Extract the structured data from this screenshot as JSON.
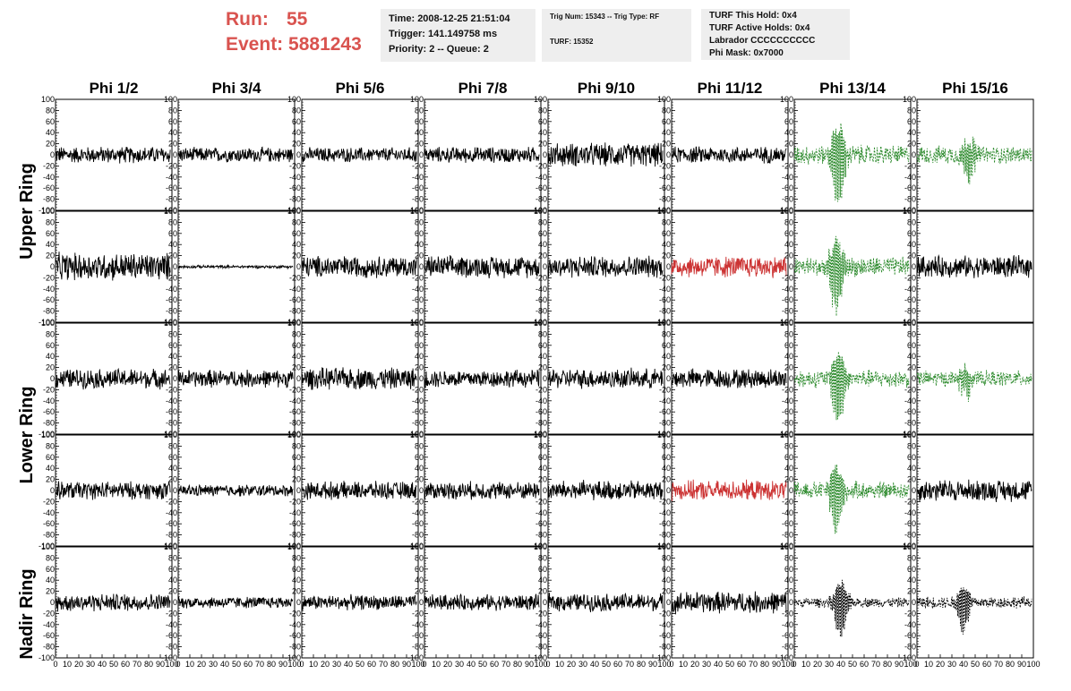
{
  "header": {
    "run_label": "Run:",
    "run_value": "55",
    "event_label": "Event:",
    "event_value": "5881243",
    "accent_color": "#d9534f"
  },
  "info": {
    "time": "Time: 2008-12-25 21:51:04",
    "trigger": "Trigger: 141.149758 ms",
    "priority": "Priority: 2 -- Queue: 2",
    "trig_num": "Trig Num: 15343 -- Trig Type: RF",
    "turf": "TURF: 15352",
    "turf_hold": "TURF This Hold: 0x4",
    "turf_active": "TURF Active Holds: 0x4",
    "labrador": "Labrador CCCCCCCCCC",
    "phi_mask": "Phi Mask: 0x7000"
  },
  "chart_data": {
    "type": "line",
    "columns": [
      "Phi 1/2",
      "Phi 3/4",
      "Phi 5/6",
      "Phi 7/8",
      "Phi 9/10",
      "Phi 11/12",
      "Phi 13/14",
      "Phi 15/16"
    ],
    "row_labels": [
      "Upper Ring",
      "Lower Ring",
      "Nadir Ring"
    ],
    "ylim": [
      -100,
      100
    ],
    "xlim": [
      0,
      100
    ],
    "y_ticks": [
      "100",
      "80",
      "60",
      "40",
      "20",
      "0",
      "-20",
      "-40",
      "-60",
      "-80",
      "-100"
    ],
    "x_ticks": [
      "0",
      "10",
      "20",
      "30",
      "40",
      "50",
      "60",
      "70",
      "80",
      "90",
      "100"
    ],
    "x_tick_text": "1020304050607080901 0",
    "colors": {
      "normal": "#000000",
      "triggered": "#cc3333",
      "masked": "#2e8b2e"
    },
    "panels": [
      [
        {
          "amp": 17,
          "color": "normal"
        },
        {
          "amp": 15,
          "color": "normal"
        },
        {
          "amp": 15,
          "color": "normal"
        },
        {
          "amp": 16,
          "color": "normal"
        },
        {
          "amp": 24,
          "color": "normal"
        },
        {
          "amp": 17,
          "color": "normal"
        },
        {
          "amp": 20,
          "color": "masked",
          "dashed": true,
          "pulse": {
            "center": 38,
            "amp": 90,
            "width": 6
          }
        },
        {
          "amp": 18,
          "color": "masked",
          "dashed": true,
          "pulse": {
            "center": 45,
            "amp": 45,
            "width": 6
          }
        }
      ],
      [
        {
          "amp": 28,
          "color": "normal"
        },
        {
          "amp": 3,
          "color": "normal"
        },
        {
          "amp": 22,
          "color": "normal"
        },
        {
          "amp": 22,
          "color": "normal"
        },
        {
          "amp": 22,
          "color": "normal"
        },
        {
          "amp": 22,
          "color": "triggered"
        },
        {
          "amp": 20,
          "color": "masked",
          "dashed": true,
          "pulse": {
            "center": 36,
            "amp": 80,
            "width": 6
          }
        },
        {
          "amp": 22,
          "color": "normal"
        }
      ],
      [
        {
          "amp": 20,
          "color": "normal"
        },
        {
          "amp": 18,
          "color": "normal"
        },
        {
          "amp": 22,
          "color": "normal"
        },
        {
          "amp": 18,
          "color": "normal"
        },
        {
          "amp": 20,
          "color": "normal"
        },
        {
          "amp": 20,
          "color": "normal"
        },
        {
          "amp": 18,
          "color": "masked",
          "dashed": true,
          "pulse": {
            "center": 38,
            "amp": 80,
            "width": 6
          }
        },
        {
          "amp": 16,
          "color": "masked",
          "dashed": true,
          "pulse": {
            "center": 42,
            "amp": 30,
            "width": 6
          }
        }
      ],
      [
        {
          "amp": 18,
          "color": "normal"
        },
        {
          "amp": 12,
          "color": "normal"
        },
        {
          "amp": 18,
          "color": "normal"
        },
        {
          "amp": 18,
          "color": "normal"
        },
        {
          "amp": 20,
          "color": "normal"
        },
        {
          "amp": 20,
          "color": "triggered"
        },
        {
          "amp": 18,
          "color": "masked",
          "dashed": true,
          "pulse": {
            "center": 36,
            "amp": 75,
            "width": 6
          }
        },
        {
          "amp": 22,
          "color": "normal"
        }
      ],
      [
        {
          "amp": 18,
          "color": "normal"
        },
        {
          "amp": 12,
          "color": "normal"
        },
        {
          "amp": 15,
          "color": "normal"
        },
        {
          "amp": 16,
          "color": "normal"
        },
        {
          "amp": 18,
          "color": "normal"
        },
        {
          "amp": 22,
          "color": "normal"
        },
        {
          "amp": 10,
          "color": "normal",
          "dashed": true,
          "pulse": {
            "center": 40,
            "amp": 60,
            "width": 6
          }
        },
        {
          "amp": 12,
          "color": "normal",
          "dashed": true,
          "pulse": {
            "center": 40,
            "amp": 50,
            "width": 6
          }
        }
      ]
    ]
  }
}
